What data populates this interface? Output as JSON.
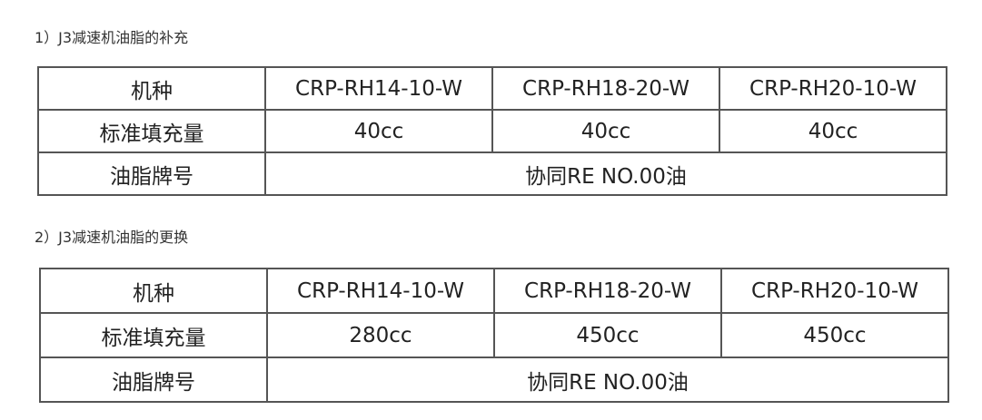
{
  "sections": [
    {
      "heading": "1）J3减速机油脂的补充",
      "header": [
        "机种",
        "CRP-RH14-10-W",
        "CRP-RH18-20-W",
        "CRP-RH20-10-W"
      ],
      "fill_label": "标准填充量",
      "fill": [
        "40cc",
        "40cc",
        "40cc"
      ],
      "brand_label": "油脂牌号",
      "brand": "协同RE NO.00油"
    },
    {
      "heading": "2）J3减速机油脂的更换",
      "header": [
        "机种",
        "CRP-RH14-10-W",
        "CRP-RH18-20-W",
        "CRP-RH20-10-W"
      ],
      "fill_label": "标准填充量",
      "fill": [
        "280cc",
        "450cc",
        "450cc"
      ],
      "brand_label": "油脂牌号",
      "brand": "协同RE NO.00油"
    }
  ]
}
